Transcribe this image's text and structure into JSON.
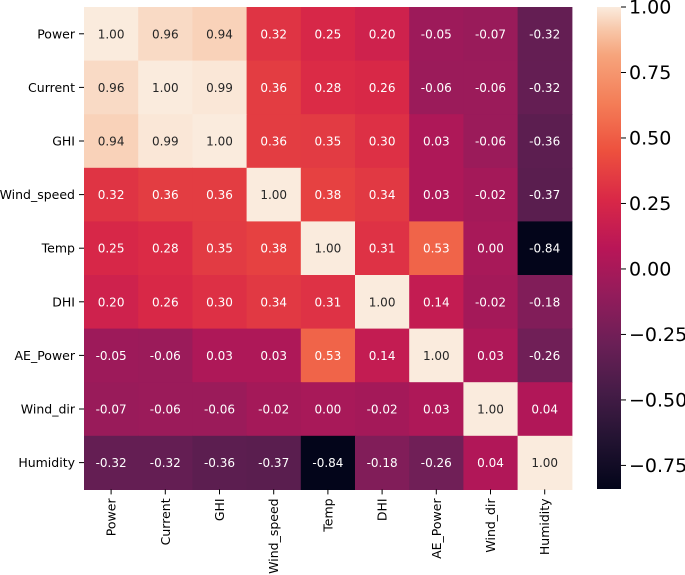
{
  "chart_data": {
    "type": "heatmap",
    "labels": [
      "Power",
      "Current",
      "GHI",
      "Wind_speed",
      "Temp",
      "DHI",
      "AE_Power",
      "Wind_dir",
      "Humidity"
    ],
    "values": [
      [
        1.0,
        0.96,
        0.94,
        0.32,
        0.25,
        0.2,
        -0.05,
        -0.07,
        -0.32
      ],
      [
        0.96,
        1.0,
        0.99,
        0.36,
        0.28,
        0.26,
        -0.06,
        -0.06,
        -0.32
      ],
      [
        0.94,
        0.99,
        1.0,
        0.36,
        0.35,
        0.3,
        0.03,
        -0.06,
        -0.36
      ],
      [
        0.32,
        0.36,
        0.36,
        1.0,
        0.38,
        0.34,
        0.03,
        -0.02,
        -0.37
      ],
      [
        0.25,
        0.28,
        0.35,
        0.38,
        1.0,
        0.31,
        0.53,
        0.0,
        -0.84
      ],
      [
        0.2,
        0.26,
        0.3,
        0.34,
        0.31,
        1.0,
        0.14,
        -0.02,
        -0.18
      ],
      [
        -0.05,
        -0.06,
        0.03,
        0.03,
        0.53,
        0.14,
        1.0,
        0.03,
        -0.26
      ],
      [
        -0.07,
        -0.06,
        -0.06,
        -0.02,
        0.0,
        -0.02,
        0.03,
        1.0,
        0.04
      ],
      [
        -0.32,
        -0.32,
        -0.36,
        -0.37,
        -0.84,
        -0.18,
        -0.26,
        0.04,
        1.0
      ]
    ],
    "value_format": "0.00",
    "colormap": "rocket",
    "vmin": -0.84,
    "vmax": 1.0,
    "colorbar": {
      "placement": "right",
      "ticks": [
        1.0,
        0.75,
        0.5,
        0.25,
        0.0,
        -0.25,
        -0.5,
        -0.75
      ],
      "tick_labels": [
        "1.00",
        "0.75",
        "0.50",
        "0.25",
        "0.00",
        "−0.25",
        "−0.50",
        "−0.75"
      ]
    },
    "colormap_stops": [
      {
        "v": 0.0,
        "c": "#03051a"
      },
      {
        "v": 0.1,
        "c": "#221331"
      },
      {
        "v": 0.2,
        "c": "#451c47"
      },
      {
        "v": 0.3,
        "c": "#6a1f56"
      },
      {
        "v": 0.4,
        "c": "#921c5b"
      },
      {
        "v": 0.5,
        "c": "#b91657"
      },
      {
        "v": 0.6,
        "c": "#d92847"
      },
      {
        "v": 0.7,
        "c": "#ed503e"
      },
      {
        "v": 0.8,
        "c": "#f47d57"
      },
      {
        "v": 0.9,
        "c": "#f6a47c"
      },
      {
        "v": 0.95,
        "c": "#f8c5a6"
      },
      {
        "v": 1.0,
        "c": "#faebdd"
      }
    ]
  }
}
